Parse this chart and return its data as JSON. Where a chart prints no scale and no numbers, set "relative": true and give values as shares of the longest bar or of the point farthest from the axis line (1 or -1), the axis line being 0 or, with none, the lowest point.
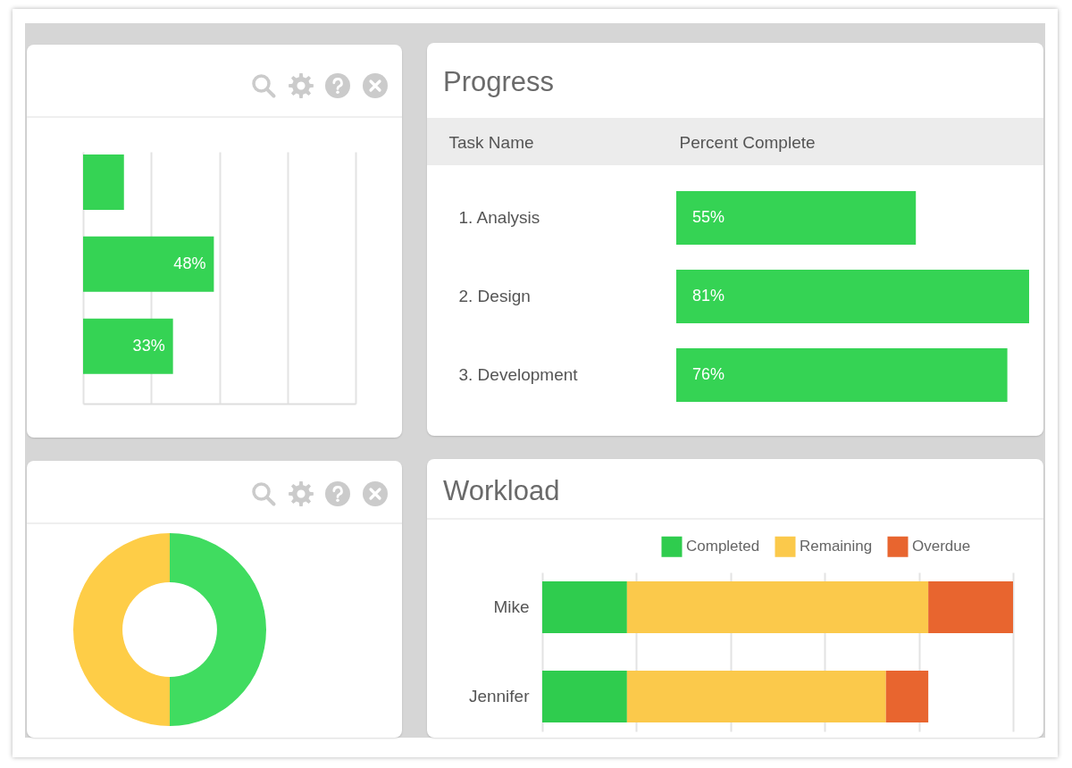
{
  "chart_data": [
    {
      "type": "bar",
      "orientation": "horizontal",
      "categories": [
        null,
        null,
        null
      ],
      "values": [
        15,
        48,
        33
      ],
      "value_labels": [
        null,
        "48%",
        "33%"
      ],
      "color": "#35d354",
      "xlim": [
        0,
        100
      ],
      "xticks": [
        {
          "value": 0,
          "label": null
        },
        {
          "value": 25,
          "label": null
        },
        {
          "value": 50,
          "label": null
        },
        {
          "value": 75,
          "label": null
        },
        {
          "value": 100,
          "label": null
        }
      ],
      "grid": "x",
      "tick_labels": false
    },
    {
      "type": "bar",
      "orientation": "horizontal",
      "title": "Progress",
      "xlabel": "Percent Complete",
      "ylabel": "Task Name",
      "categories": [
        "1. Analysis",
        "2. Design",
        "3. Development"
      ],
      "values": [
        55,
        81,
        76
      ],
      "value_labels": [
        "55%",
        "81%",
        "76%"
      ],
      "color": "#35d354",
      "tick_labels": "y"
    },
    {
      "type": "donut",
      "categories": [
        null,
        null
      ],
      "values": [
        50,
        50
      ],
      "colors": [
        "#40dc60",
        "#fecd47"
      ]
    },
    {
      "type": "bar",
      "orientation": "horizontal",
      "stacked": true,
      "relative": true,
      "title": "Workload",
      "categories": [
        "Mike",
        "Jennifer"
      ],
      "series": [
        {
          "name": "Completed",
          "color": "#2fcc4e",
          "values": [
            0.18,
            0.18
          ]
        },
        {
          "name": "Remaining",
          "color": "#fbc94b",
          "values": [
            0.64,
            0.55
          ]
        },
        {
          "name": "Overdue",
          "color": "#e8652f",
          "values": [
            0.18,
            0.09
          ]
        }
      ],
      "legend": "top right",
      "grid": "x",
      "tick_labels": "y"
    }
  ]
}
